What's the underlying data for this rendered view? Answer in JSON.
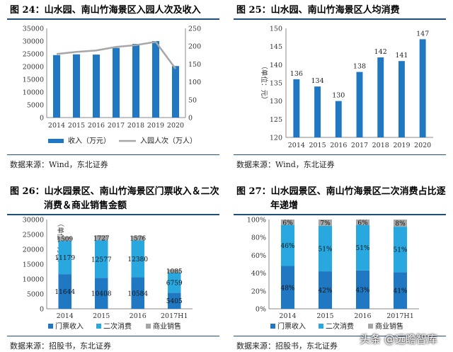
{
  "panels": {
    "p1": {
      "title": "图 24：山水园、南山竹海景区入园人次及收入",
      "source": "数据来源：Wind，东北证券"
    },
    "p2": {
      "title": "图 25：山水园、南山竹海景区人均消费",
      "source": "数据来源：Wind，东北证券"
    },
    "p3": {
      "title_line1": "图 26：山水园景区、南山竹海景区门票收入＆二次",
      "title_line2": "消费＆商业销售金额",
      "source": "数据来源：招股书，东北证券"
    },
    "p4": {
      "title_line1": "图 27：山水园景区、南山竹海景区二次消费占比逐",
      "title_line2": "年递增",
      "source": "数据来源：招股书，东北证券"
    }
  },
  "watermark": "头条 @远瞻智库",
  "colors": {
    "blue": "#1f78c1",
    "light_blue": "#29a8e0",
    "gray": "#a6a6a6",
    "rule": "#1f4e79"
  },
  "chart_data": [
    {
      "type": "bar",
      "categories": [
        "2014",
        "2015",
        "2016",
        "2017",
        "2018",
        "2019",
        "2020"
      ],
      "series": [
        {
          "name": "收入（万元）",
          "type": "bar",
          "axis": "left",
          "values": [
            24500,
            24800,
            24700,
            27300,
            28900,
            30000,
            20200
          ]
        },
        {
          "name": "入园人次（万人）",
          "type": "line",
          "axis": "right",
          "values": [
            178,
            184,
            188,
            198,
            203,
            212,
            137
          ]
        }
      ],
      "ylim_left": [
        0,
        35000
      ],
      "yticks_left": [
        "0",
        "5000",
        "10000",
        "15000",
        "20000",
        "25000",
        "30000",
        "35000"
      ],
      "ylim_right": [
        0,
        250
      ],
      "yticks_right": [
        "0",
        "50",
        "100",
        "150",
        "200",
        "250"
      ],
      "legend": "bottom"
    },
    {
      "type": "bar",
      "categories": [
        "2014",
        "2015",
        "2016",
        "2017",
        "2018",
        "2019",
        "2020"
      ],
      "values": [
        136,
        134,
        130,
        138,
        142,
        141,
        147
      ],
      "ylabel": "（单位：元）",
      "ylim": [
        120,
        150
      ],
      "yticks": [
        "120",
        "125",
        "130",
        "135",
        "140",
        "145",
        "150"
      ]
    },
    {
      "type": "bar",
      "stacked": true,
      "categories": [
        "2014",
        "2015",
        "2016",
        "2017H1"
      ],
      "series": [
        {
          "name": "门票收入",
          "values": [
            11644,
            10408,
            10584,
            5405
          ]
        },
        {
          "name": "二次消费",
          "values": [
            11179,
            12577,
            12380,
            6759
          ]
        },
        {
          "name": "商业销售",
          "values": [
            1509,
            1727,
            1576,
            1085
          ]
        }
      ],
      "ylabel": "（单位：万元）",
      "ylim": [
        0,
        30000
      ],
      "yticks": [
        "0",
        "5000",
        "10000",
        "15000",
        "20000",
        "25000",
        "30000"
      ],
      "legend": "bottom"
    },
    {
      "type": "bar",
      "stacked": true,
      "percent": true,
      "categories": [
        "2014",
        "2015",
        "2016",
        "2017H1"
      ],
      "series": [
        {
          "name": "门票收入",
          "values": [
            48,
            42,
            43,
            41
          ],
          "labels": [
            "48%",
            "42%",
            "43%",
            "41%"
          ]
        },
        {
          "name": "二次消费",
          "values": [
            46,
            51,
            51,
            51
          ],
          "labels": [
            "46%",
            "51%",
            "51%",
            "51%"
          ]
        },
        {
          "name": "商业销售",
          "values": [
            6,
            7,
            6,
            8
          ],
          "labels": [
            "6%",
            "7%",
            "6%",
            "8%"
          ]
        }
      ],
      "ylim": [
        0,
        100
      ],
      "yticks": [
        "0%",
        "20%",
        "40%",
        "60%",
        "80%",
        "100%"
      ],
      "legend": "bottom"
    }
  ]
}
